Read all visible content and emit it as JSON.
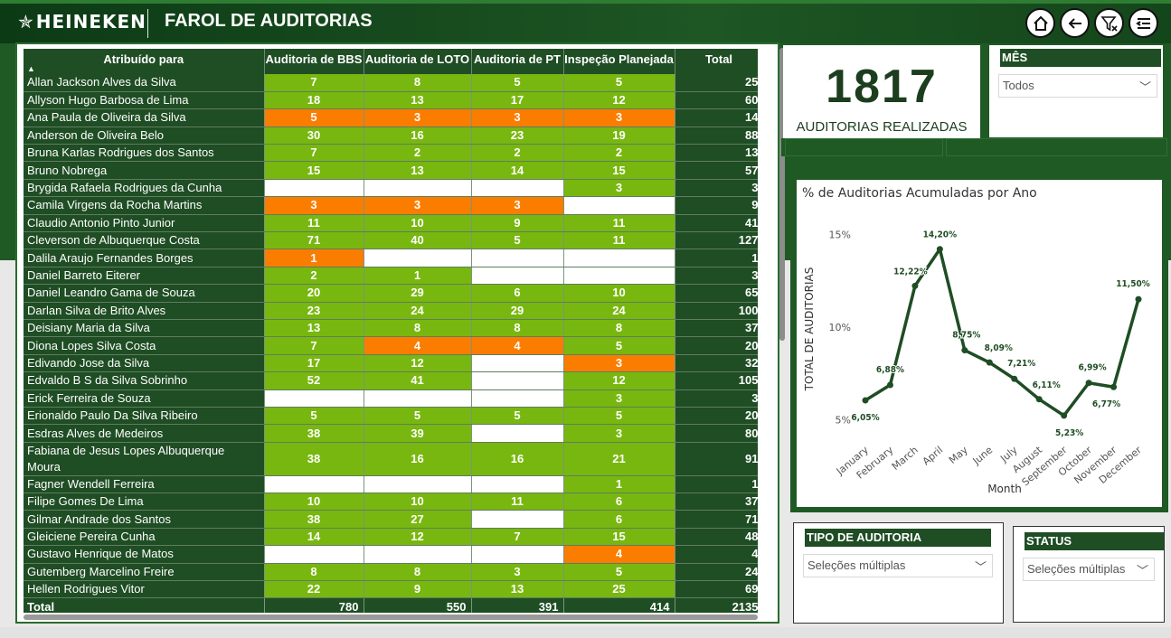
{
  "header": {
    "logo_text": "HEINEKEN",
    "title": "FAROL DE AUDITORIAS",
    "nav_icons": [
      "home-icon",
      "back-arrow-icon",
      "clear-filter-icon",
      "menu-icon"
    ]
  },
  "table": {
    "columns": [
      "Atribuído para",
      "Auditoria de BBS",
      "Auditoria de LOTO",
      "Auditoria de PT",
      "Inspeção Planejada",
      "Total"
    ],
    "rows": [
      {
        "name": "Allan Jackson Alves da Silva",
        "cells": [
          [
            "7",
            "g"
          ],
          [
            "8",
            "g"
          ],
          [
            "5",
            "g"
          ],
          [
            "5",
            "g"
          ]
        ],
        "total": "25"
      },
      {
        "name": "Allyson Hugo Barbosa de Lima",
        "cells": [
          [
            "18",
            "g"
          ],
          [
            "13",
            "g"
          ],
          [
            "17",
            "g"
          ],
          [
            "12",
            "g"
          ]
        ],
        "total": "60"
      },
      {
        "name": "Ana Paula de Oliveira da Silva",
        "cells": [
          [
            "5",
            "o"
          ],
          [
            "3",
            "o"
          ],
          [
            "3",
            "o"
          ],
          [
            "3",
            "o"
          ]
        ],
        "total": "14"
      },
      {
        "name": "Anderson de Oliveira Belo",
        "cells": [
          [
            "30",
            "g"
          ],
          [
            "16",
            "g"
          ],
          [
            "23",
            "g"
          ],
          [
            "19",
            "g"
          ]
        ],
        "total": "88"
      },
      {
        "name": "Bruna Karlas Rodrigues dos Santos",
        "cells": [
          [
            "7",
            "g"
          ],
          [
            "2",
            "g"
          ],
          [
            "2",
            "g"
          ],
          [
            "2",
            "g"
          ]
        ],
        "total": "13"
      },
      {
        "name": "Bruno Nobrega",
        "cells": [
          [
            "15",
            "g"
          ],
          [
            "13",
            "g"
          ],
          [
            "14",
            "g"
          ],
          [
            "15",
            "g"
          ]
        ],
        "total": "57"
      },
      {
        "name": "Brygida Rafaela Rodrigues da Cunha",
        "cells": [
          [
            "",
            "w"
          ],
          [
            "",
            "w"
          ],
          [
            "",
            "w"
          ],
          [
            "3",
            "g"
          ]
        ],
        "total": "3"
      },
      {
        "name": "Camila Virgens da Rocha Martins",
        "cells": [
          [
            "3",
            "o"
          ],
          [
            "3",
            "o"
          ],
          [
            "3",
            "o"
          ],
          [
            "",
            "w"
          ]
        ],
        "total": "9"
      },
      {
        "name": "Claudio Antonio Pinto Junior",
        "cells": [
          [
            "11",
            "g"
          ],
          [
            "10",
            "g"
          ],
          [
            "9",
            "g"
          ],
          [
            "11",
            "g"
          ]
        ],
        "total": "41"
      },
      {
        "name": "Cleverson de Albuquerque Costa",
        "cells": [
          [
            "71",
            "g"
          ],
          [
            "40",
            "g"
          ],
          [
            "5",
            "g"
          ],
          [
            "11",
            "g"
          ]
        ],
        "total": "127"
      },
      {
        "name": "Dalila Araujo Fernandes Borges",
        "cells": [
          [
            "1",
            "o"
          ],
          [
            "",
            "w"
          ],
          [
            "",
            "w"
          ],
          [
            "",
            "w"
          ]
        ],
        "total": "1"
      },
      {
        "name": "Daniel Barreto Eiterer",
        "cells": [
          [
            "2",
            "g"
          ],
          [
            "1",
            "g"
          ],
          [
            "",
            "w"
          ],
          [
            "",
            "w"
          ]
        ],
        "total": "3"
      },
      {
        "name": "Daniel Leandro Gama de Souza",
        "cells": [
          [
            "20",
            "g"
          ],
          [
            "29",
            "g"
          ],
          [
            "6",
            "g"
          ],
          [
            "10",
            "g"
          ]
        ],
        "total": "65"
      },
      {
        "name": "Darlan Silva de Brito Alves",
        "cells": [
          [
            "23",
            "g"
          ],
          [
            "24",
            "g"
          ],
          [
            "29",
            "g"
          ],
          [
            "24",
            "g"
          ]
        ],
        "total": "100"
      },
      {
        "name": "Deisiany Maria da Silva",
        "cells": [
          [
            "13",
            "g"
          ],
          [
            "8",
            "g"
          ],
          [
            "8",
            "g"
          ],
          [
            "8",
            "g"
          ]
        ],
        "total": "37"
      },
      {
        "name": "Diona Lopes Silva Costa",
        "cells": [
          [
            "7",
            "g"
          ],
          [
            "4",
            "o"
          ],
          [
            "4",
            "o"
          ],
          [
            "5",
            "g"
          ]
        ],
        "total": "20"
      },
      {
        "name": "Edivando Jose da Silva",
        "cells": [
          [
            "17",
            "g"
          ],
          [
            "12",
            "g"
          ],
          [
            "",
            "w"
          ],
          [
            "3",
            "o"
          ]
        ],
        "total": "32"
      },
      {
        "name": "Edvaldo B S da Silva Sobrinho",
        "cells": [
          [
            "52",
            "g"
          ],
          [
            "41",
            "g"
          ],
          [
            "",
            "w"
          ],
          [
            "12",
            "g"
          ]
        ],
        "total": "105"
      },
      {
        "name": "Erick Ferreira de Souza",
        "cells": [
          [
            "",
            "w"
          ],
          [
            "",
            "w"
          ],
          [
            "",
            "w"
          ],
          [
            "3",
            "g"
          ]
        ],
        "total": "3"
      },
      {
        "name": "Erionaldo Paulo Da Silva Ribeiro",
        "cells": [
          [
            "5",
            "g"
          ],
          [
            "5",
            "g"
          ],
          [
            "5",
            "g"
          ],
          [
            "5",
            "g"
          ]
        ],
        "total": "20"
      },
      {
        "name": "Esdras Alves de Medeiros",
        "cells": [
          [
            "38",
            "g"
          ],
          [
            "39",
            "g"
          ],
          [
            "",
            "w"
          ],
          [
            "3",
            "g"
          ]
        ],
        "total": "80"
      },
      {
        "name": "Fabiana de Jesus Lopes Albuquerque Moura",
        "cells": [
          [
            "38",
            "g"
          ],
          [
            "16",
            "g"
          ],
          [
            "16",
            "g"
          ],
          [
            "21",
            "g"
          ]
        ],
        "total": "91",
        "tall": true
      },
      {
        "name": "Fagner Wendell Ferreira",
        "cells": [
          [
            "",
            "w"
          ],
          [
            "",
            "w"
          ],
          [
            "",
            "w"
          ],
          [
            "1",
            "g"
          ]
        ],
        "total": "1"
      },
      {
        "name": "Filipe Gomes De Lima",
        "cells": [
          [
            "10",
            "g"
          ],
          [
            "10",
            "g"
          ],
          [
            "11",
            "g"
          ],
          [
            "6",
            "g"
          ]
        ],
        "total": "37"
      },
      {
        "name": "Gilmar Andrade dos Santos",
        "cells": [
          [
            "38",
            "g"
          ],
          [
            "27",
            "g"
          ],
          [
            "",
            "w"
          ],
          [
            "6",
            "g"
          ]
        ],
        "total": "71"
      },
      {
        "name": "Gleiciene Pereira Cunha",
        "cells": [
          [
            "14",
            "g"
          ],
          [
            "12",
            "g"
          ],
          [
            "7",
            "g"
          ],
          [
            "15",
            "g"
          ]
        ],
        "total": "48"
      },
      {
        "name": "Gustavo Henrique de Matos",
        "cells": [
          [
            "",
            "w"
          ],
          [
            "",
            "w"
          ],
          [
            "",
            "w"
          ],
          [
            "4",
            "o"
          ]
        ],
        "total": "4"
      },
      {
        "name": "Gutemberg Marcelino Freire",
        "cells": [
          [
            "8",
            "g"
          ],
          [
            "8",
            "g"
          ],
          [
            "3",
            "g"
          ],
          [
            "5",
            "g"
          ]
        ],
        "total": "24"
      },
      {
        "name": "Hellen Rodrigues Vitor",
        "cells": [
          [
            "22",
            "g"
          ],
          [
            "9",
            "g"
          ],
          [
            "13",
            "g"
          ],
          [
            "25",
            "g"
          ]
        ],
        "total": "69"
      }
    ],
    "total_row": {
      "label": "Total",
      "values": [
        "780",
        "550",
        "391",
        "414",
        "2135"
      ]
    },
    "colors": {
      "green": "#78b70f",
      "orange": "#fa7d00",
      "white": "#ffffff",
      "dark": "#1f4d24"
    }
  },
  "kpi": {
    "value": "1817",
    "label": "AUDITORIAS REALIZADAS"
  },
  "slicers": {
    "mes": {
      "title": "MÊS",
      "value": "Todos"
    },
    "tipo": {
      "title": "TIPO DE AUDITORIA",
      "value": "Seleções múltiplas"
    },
    "status": {
      "title": "STATUS",
      "value": "Seleções múltiplas"
    }
  },
  "chart_data": {
    "type": "line",
    "title": "% de Auditorias Acumuladas por Ano",
    "xlabel": "Month",
    "ylabel": "TOTAL DE AUDITORIAS",
    "categories": [
      "January",
      "February",
      "March",
      "April",
      "May",
      "June",
      "July",
      "August",
      "September",
      "October",
      "November",
      "December"
    ],
    "values": [
      6.05,
      6.88,
      12.22,
      14.2,
      8.75,
      8.09,
      7.21,
      6.11,
      5.23,
      6.99,
      6.77,
      11.5
    ],
    "data_labels": [
      "6,05%",
      "6,88%",
      "12,22%",
      "14,20%",
      "8,75%",
      "8,09%",
      "7,21%",
      "6,11%",
      "5,23%",
      "6,99%",
      "6,77%",
      "11,50%"
    ],
    "yticks": [
      "5%",
      "10%",
      "15%"
    ],
    "ytick_values": [
      5,
      10,
      15
    ],
    "ylim": [
      4.2,
      15.5
    ],
    "grid": false,
    "line_color": "#1f4d24"
  }
}
